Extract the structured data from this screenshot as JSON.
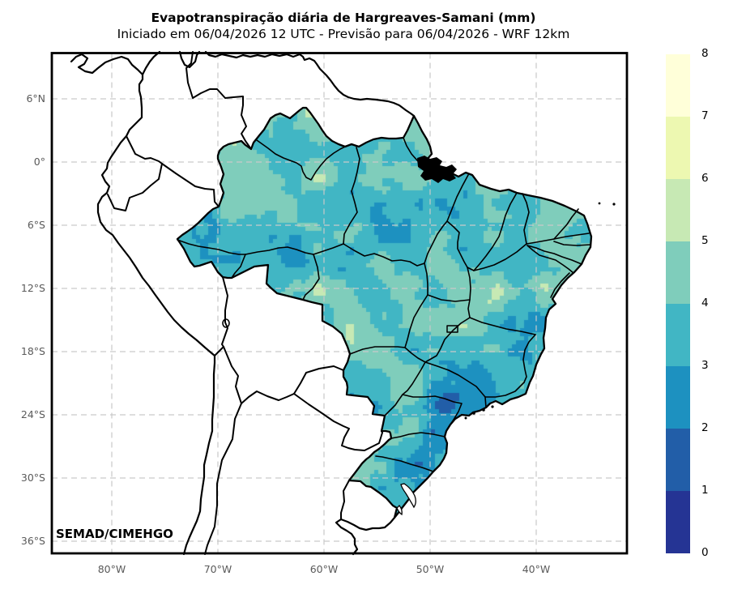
{
  "header": {
    "title": "Evapotranspiração diária de Hargreaves-Samani (mm)",
    "subtitle": "Iniciado em 06/04/2026 12 UTC - Previsão para 06/04/2026 - WRF 12km"
  },
  "credit": "SEMAD/CIMEHGO",
  "axes": {
    "lat_ticks": [
      {
        "label": "6°N",
        "deg": 6
      },
      {
        "label": "0°",
        "deg": 0
      },
      {
        "label": "6°S",
        "deg": -6
      },
      {
        "label": "12°S",
        "deg": -12
      },
      {
        "label": "18°S",
        "deg": -18
      },
      {
        "label": "24°S",
        "deg": -24
      },
      {
        "label": "30°S",
        "deg": -30
      },
      {
        "label": "36°S",
        "deg": -36
      }
    ],
    "lon_ticks": [
      {
        "label": "80°W",
        "deg": -80
      },
      {
        "label": "70°W",
        "deg": -70
      },
      {
        "label": "60°W",
        "deg": -60
      },
      {
        "label": "50°W",
        "deg": -50
      },
      {
        "label": "40°W",
        "deg": -40
      }
    ]
  },
  "colorbar": {
    "tick_labels": [
      "0",
      "1",
      "2",
      "3",
      "4",
      "5",
      "6",
      "7",
      "8"
    ],
    "colors_low_to_high": [
      "#253494",
      "#225ea8",
      "#1d91c0",
      "#41b6c4",
      "#7fcdbb",
      "#c7e9b4",
      "#edf8b1",
      "#ffffd9"
    ]
  },
  "chart_data": {
    "type": "heatmap",
    "title": "Evapotranspiração diária de Hargreaves-Samani (mm)",
    "value_range_mm": [
      0,
      8
    ],
    "levels": [
      0,
      1,
      2,
      3,
      4,
      5,
      6,
      7,
      8
    ],
    "palette": [
      "#253494",
      "#225ea8",
      "#1d91c0",
      "#41b6c4",
      "#7fcdbb",
      "#c7e9b4",
      "#edf8b1",
      "#ffffd9"
    ],
    "lon_range_deg": [
      -85.7,
      -31.4
    ],
    "lat_range_deg": [
      -37.2,
      10.5
    ],
    "grid": "dashed gray lat/lon lines every 6° lat and 10° lon",
    "regions_estimated_mm": {
      "amazon_basin": "3-5",
      "roraima_north": "4-6 with patches 5-6",
      "northeast_coast": "4-5",
      "tocantins_goias_ms": "4-6",
      "minas_gerais_south": "2-3 with patches 1-2",
      "sao_paulo": "2-4",
      "santa_catarina_coast": "1-3",
      "rio_grande_do_sul_west": "4-6"
    }
  }
}
